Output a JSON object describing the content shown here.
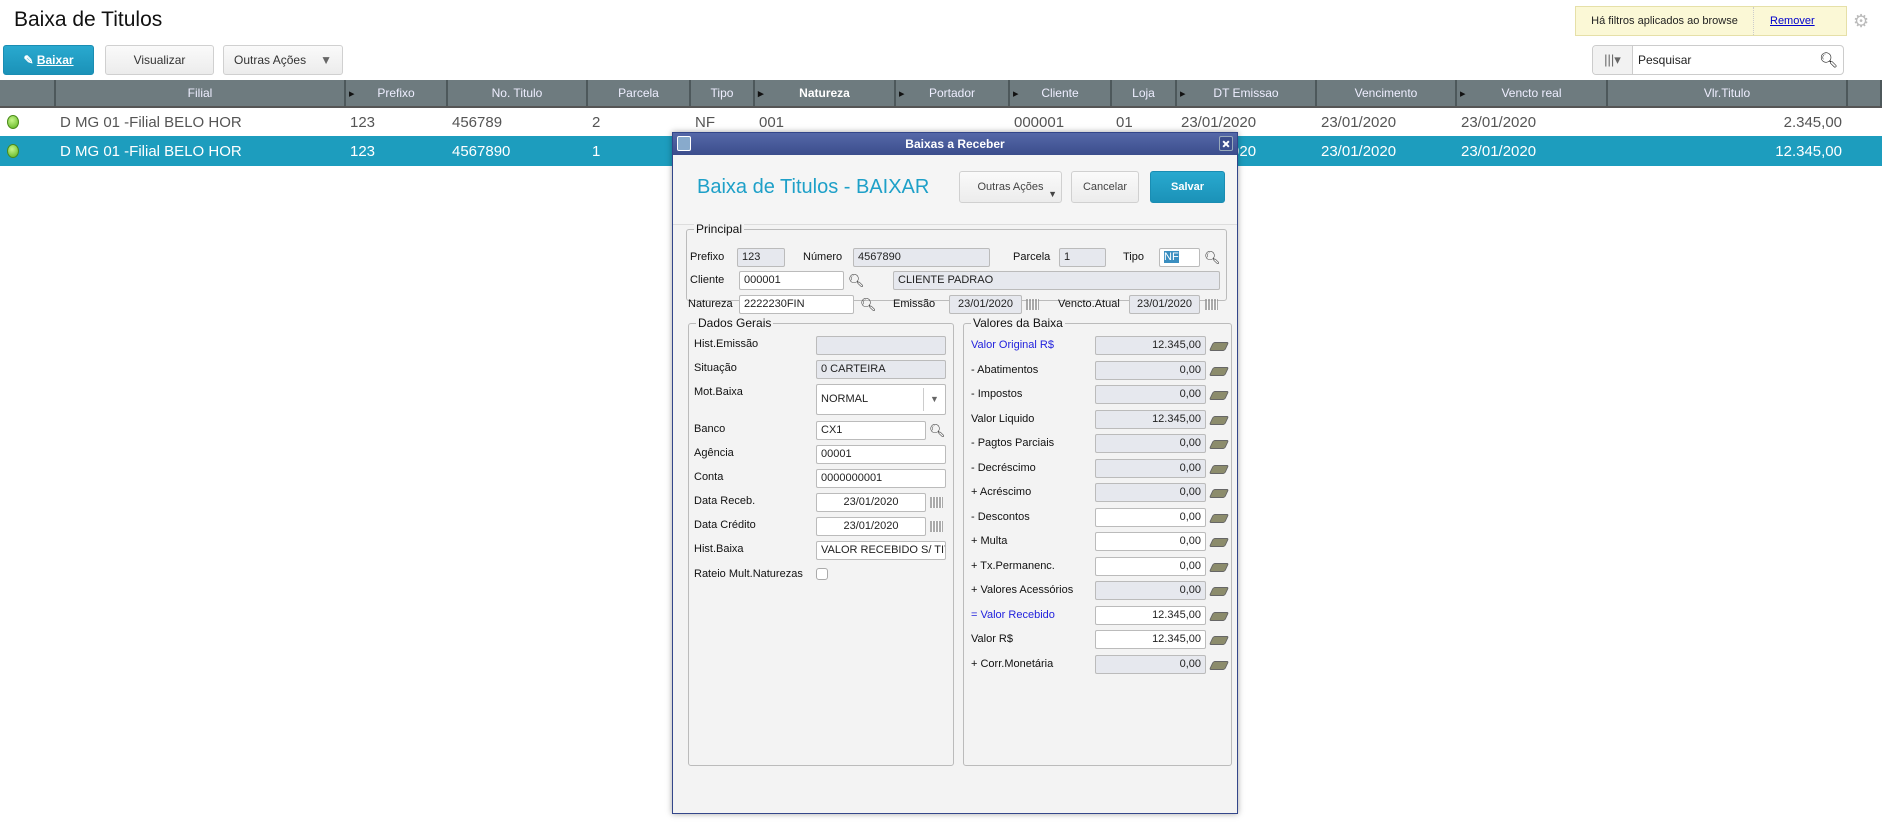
{
  "page": {
    "title": "Baixa de Titulos"
  },
  "toolbar": {
    "baixar": "Baixar",
    "visualizar": "Visualizar",
    "outras_acoes": "Outras Ações"
  },
  "filter": {
    "message": "Há filtros aplicados ao browse",
    "remove": "Remover"
  },
  "search": {
    "placeholder": "Pesquisar"
  },
  "grid": {
    "columns": [
      "",
      "Filial",
      "Prefixo",
      "No. Titulo",
      "Parcela",
      "Tipo",
      "Natureza",
      "Portador",
      "Cliente",
      "Loja",
      "DT Emissao",
      "Vencimento",
      "Vencto real",
      "Vlr.Titulo",
      ""
    ],
    "rows": [
      {
        "status": "green",
        "filial": "D MG 01 -Filial BELO HOR",
        "prefixo": "123",
        "titulo": "456789",
        "parcela": "2",
        "tipo": "NF",
        "natureza": "001",
        "portador": "",
        "cliente": "000001",
        "loja": "01",
        "emissao": "23/01/2020",
        "vencimento": "23/01/2020",
        "vencto_real": "23/01/2020",
        "valor": "2.345,00"
      },
      {
        "status": "green",
        "filial": "D MG 01 -Filial BELO HOR",
        "prefixo": "123",
        "titulo": "4567890",
        "parcela": "1",
        "tipo": "",
        "natureza": "",
        "portador": "",
        "cliente": "",
        "loja": "",
        "emissao": "23/01/2020",
        "vencimento": "23/01/2020",
        "vencto_real": "23/01/2020",
        "valor": "12.345,00",
        "selected": true
      }
    ]
  },
  "dialog": {
    "window_title": "Baixas a Receber",
    "heading": "Baixa de Titulos - BAIXAR",
    "buttons": {
      "outras": "Outras Ações",
      "cancelar": "Cancelar",
      "salvar": "Salvar"
    },
    "principal": {
      "legend": "Principal",
      "prefixo_label": "Prefixo",
      "prefixo": "123",
      "numero_label": "Número",
      "numero": "4567890",
      "parcela_label": "Parcela",
      "parcela": "1",
      "tipo_label": "Tipo",
      "tipo": "NF",
      "cliente_label": "Cliente",
      "cliente": "000001",
      "cliente_nome": "CLIENTE PADRAO",
      "natureza_label": "Natureza",
      "natureza": "2222230FIN",
      "emissao_label": "Emissão",
      "emissao": "23/01/2020",
      "vencto_label": "Vencto.Atual",
      "vencto": "23/01/2020"
    },
    "dados_gerais": {
      "legend": "Dados Gerais",
      "hist_emissao_label": "Hist.Emissão",
      "hist_emissao": "",
      "situacao_label": "Situação",
      "situacao": "0 CARTEIRA",
      "mot_baixa_label": "Mot.Baixa",
      "mot_baixa": "NORMAL",
      "banco_label": "Banco",
      "banco": "CX1",
      "agencia_label": "Agência",
      "agencia": "00001",
      "conta_label": "Conta",
      "conta": "0000000001",
      "data_receb_label": "Data Receb.",
      "data_receb": "23/01/2020",
      "data_credito_label": "Data Crédito",
      "data_credito": "23/01/2020",
      "hist_baixa_label": "Hist.Baixa",
      "hist_baixa": "VALOR RECEBIDO S/ TIT",
      "rateio_label": "Rateio Mult.Naturezas",
      "rateio_checked": false
    },
    "valores": {
      "legend": "Valores da Baixa",
      "rows": [
        {
          "label": "Valor Original R$",
          "value": "12.345,00",
          "readonly": true,
          "highlight": true
        },
        {
          "label": "- Abatimentos",
          "value": "0,00",
          "readonly": true
        },
        {
          "label": "- Impostos",
          "value": "0,00",
          "readonly": true
        },
        {
          "label": "Valor Liquido",
          "value": "12.345,00",
          "readonly": true
        },
        {
          "label": "- Pagtos Parciais",
          "value": "0,00",
          "readonly": true
        },
        {
          "label": "- Decréscimo",
          "value": "0,00",
          "readonly": true
        },
        {
          "label": "+ Acréscimo",
          "value": "0,00",
          "readonly": true
        },
        {
          "label": "- Descontos",
          "value": "0,00",
          "readonly": false
        },
        {
          "label": "+ Multa",
          "value": "0,00",
          "readonly": false
        },
        {
          "label": "+ Tx.Permanenc.",
          "value": "0,00",
          "readonly": false
        },
        {
          "label": "+ Valores Acessórios",
          "value": "0,00",
          "readonly": true
        },
        {
          "label": "= Valor Recebido",
          "value": "12.345,00",
          "readonly": false,
          "highlight": true
        },
        {
          "label": "Valor R$",
          "value": "12.345,00",
          "readonly": false
        },
        {
          "label": "+ Corr.Monetária",
          "value": "0,00",
          "readonly": true
        }
      ]
    }
  },
  "colors": {
    "accent": "#1d9dbe",
    "header": "#6e7b7f",
    "dialog_title": "#3b4d8c",
    "status_green": "#5bb31c",
    "highlight_label": "#2222dd"
  }
}
